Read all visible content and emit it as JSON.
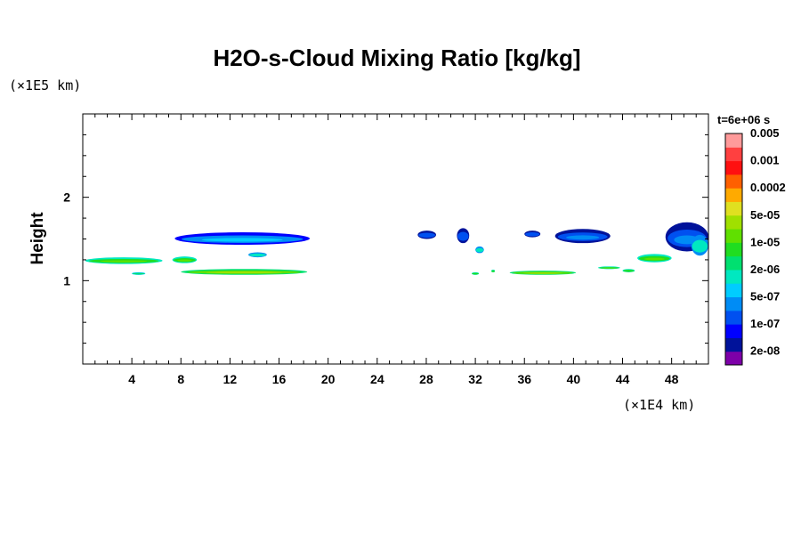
{
  "chart_data": {
    "type": "heatmap",
    "title": "H2O-s-Cloud Mixing Ratio [kg/kg]",
    "ylabel": "Height",
    "xunit": "(×1E4 km)",
    "yunit": "(×1E5 km)",
    "time_label": "t=6e+06 s",
    "xlim": [
      0,
      51
    ],
    "ylim": [
      0,
      3
    ],
    "x_major_ticks": [
      4,
      8,
      12,
      16,
      20,
      24,
      28,
      32,
      36,
      40,
      44,
      48
    ],
    "y_major_ticks": [
      1,
      2
    ],
    "x_minor_step": 1,
    "y_minor_step": 0.25,
    "colorbar": {
      "colors": [
        "#7d00a8",
        "#00129a",
        "#0000ff",
        "#0050f0",
        "#008cf5",
        "#00ccff",
        "#00e8c0",
        "#00e070",
        "#20dd20",
        "#60e000",
        "#a0e000",
        "#e0e020",
        "#ffaa00",
        "#ff6000",
        "#ff1010",
        "#ff4040",
        "#ff9a9a"
      ],
      "labels": [
        "2e-08",
        "1e-07",
        "5e-07",
        "2e-06",
        "1e-05",
        "5e-05",
        "0.0002",
        "0.001",
        "0.005"
      ]
    },
    "clouds": [
      {
        "x": [
          0.2,
          6.5
        ],
        "y": [
          1.2,
          1.28
        ],
        "level": 8
      },
      {
        "x": [
          7.3,
          9.3
        ],
        "y": [
          1.21,
          1.29
        ],
        "level": 8
      },
      {
        "x": [
          4.0,
          5.1
        ],
        "y": [
          1.07,
          1.1
        ],
        "level": 7
      },
      {
        "x": [
          8.0,
          18.3
        ],
        "y": [
          1.07,
          1.14
        ],
        "level": 9
      },
      {
        "x": [
          7.5,
          18.5
        ],
        "y": [
          1.43,
          1.58
        ],
        "level": 4
      },
      {
        "x": [
          13.5,
          15.0
        ],
        "y": [
          1.28,
          1.34
        ],
        "level": 6
      },
      {
        "x": [
          27.3,
          28.8
        ],
        "y": [
          1.5,
          1.6
        ],
        "level": 3
      },
      {
        "x": [
          30.5,
          31.5
        ],
        "y": [
          1.45,
          1.63
        ],
        "level": 3
      },
      {
        "x": [
          32.0,
          32.7
        ],
        "y": [
          1.33,
          1.41
        ],
        "level": 6
      },
      {
        "x": [
          31.7,
          32.3
        ],
        "y": [
          1.07,
          1.1
        ],
        "level": 8
      },
      {
        "x": [
          33.3,
          33.6
        ],
        "y": [
          1.1,
          1.13
        ],
        "level": 8
      },
      {
        "x": [
          34.8,
          40.2
        ],
        "y": [
          1.07,
          1.12
        ],
        "level": 9
      },
      {
        "x": [
          36.0,
          37.3
        ],
        "y": [
          1.52,
          1.6
        ],
        "level": 3
      },
      {
        "x": [
          38.5,
          43.0
        ],
        "y": [
          1.45,
          1.62
        ],
        "level": 3
      },
      {
        "x": [
          42.0,
          43.8
        ],
        "y": [
          1.14,
          1.17
        ],
        "level": 8
      },
      {
        "x": [
          44.0,
          45.0
        ],
        "y": [
          1.1,
          1.14
        ],
        "level": 8
      },
      {
        "x": [
          45.2,
          48.0
        ],
        "y": [
          1.22,
          1.32
        ],
        "level": 8
      },
      {
        "x": [
          47.5,
          51.0
        ],
        "y": [
          1.35,
          1.7
        ],
        "level": 3
      },
      {
        "x": [
          49.6,
          51.0
        ],
        "y": [
          1.3,
          1.55
        ],
        "level": 6
      }
    ]
  }
}
